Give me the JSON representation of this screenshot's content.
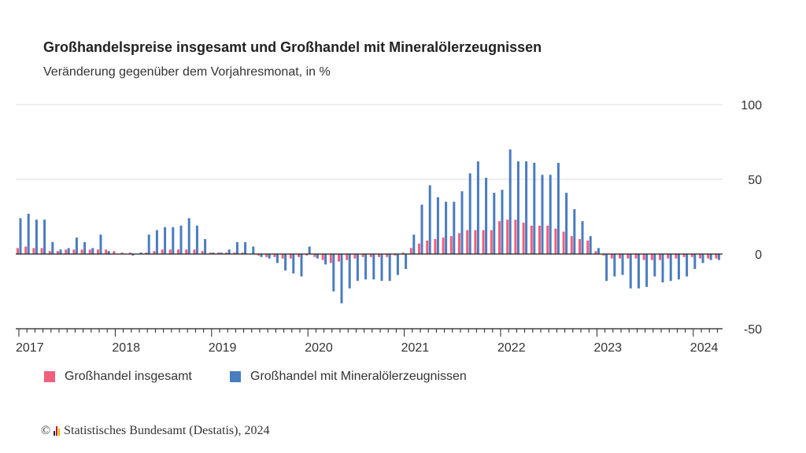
{
  "title": "Großhandelspreise insgesamt und Großhandel mit Mineralölerzeugnissen",
  "subtitle": "Veränderung gegenüber dem Vorjahresmonat, in %",
  "legend": {
    "series1": "Großhandel insgesamt",
    "series2": "Großhandel mit Mineralölerzeugnissen"
  },
  "footer": {
    "copyright": "©",
    "source": "Statistisches Bundesamt (Destatis), 2024"
  },
  "colors": {
    "series1": "#f0607a",
    "series2": "#4a7cc0",
    "axis": "#333333",
    "grid": "#dddddd"
  },
  "chart_data": {
    "type": "bar",
    "x_start": "2017-01",
    "x_labels": [
      "2017",
      "2018",
      "2019",
      "2020",
      "2021",
      "2022",
      "2023",
      "2024"
    ],
    "yticks": [
      100,
      50,
      0,
      -50
    ],
    "ylim": [
      -50,
      100
    ],
    "grid": true,
    "legend_position": "bottom-left",
    "series": [
      {
        "name": "Großhandel insgesamt",
        "values": [
          4,
          5,
          4,
          4,
          2,
          2,
          3,
          3,
          3,
          3,
          3,
          3,
          2,
          1,
          1,
          0,
          1,
          2,
          3,
          3,
          3,
          3,
          3,
          2,
          1,
          1,
          1,
          1,
          1,
          0,
          -1,
          -2,
          -2,
          -3,
          -3,
          -2,
          -1,
          -2,
          -4,
          -6,
          -5,
          -4,
          -3,
          -2,
          -2,
          -2,
          -2,
          -1,
          1,
          4,
          7,
          9,
          10,
          11,
          12,
          14,
          16,
          16,
          16,
          16,
          22,
          23,
          23,
          21,
          19,
          19,
          19,
          17,
          15,
          12,
          10,
          9,
          2,
          -1,
          -3,
          -3,
          -3,
          -3,
          -4,
          -4,
          -4,
          -3,
          -3,
          -2,
          -2,
          -3,
          -3,
          -3
        ]
      },
      {
        "name": "Großhandel mit Mineralölerzeugnissen",
        "values": [
          24,
          27,
          23,
          23,
          8,
          3,
          4,
          11,
          8,
          4,
          13,
          2,
          0,
          0,
          -1,
          1,
          13,
          16,
          18,
          18,
          19,
          24,
          19,
          10,
          1,
          1,
          3,
          8,
          8,
          5,
          -2,
          -3,
          -6,
          -11,
          -13,
          -15,
          5,
          -3,
          -7,
          -25,
          -33,
          -23,
          -18,
          -17,
          -17,
          -18,
          -18,
          -14,
          -10,
          13,
          33,
          46,
          38,
          35,
          35,
          42,
          54,
          62,
          51,
          41,
          43,
          70,
          62,
          62,
          61,
          53,
          53,
          61,
          41,
          30,
          22,
          12,
          4,
          -18,
          -15,
          -14,
          -23,
          -23,
          -22,
          -15,
          -19,
          -18,
          -17,
          -15,
          -10,
          -6,
          -4,
          -4
        ]
      }
    ]
  }
}
